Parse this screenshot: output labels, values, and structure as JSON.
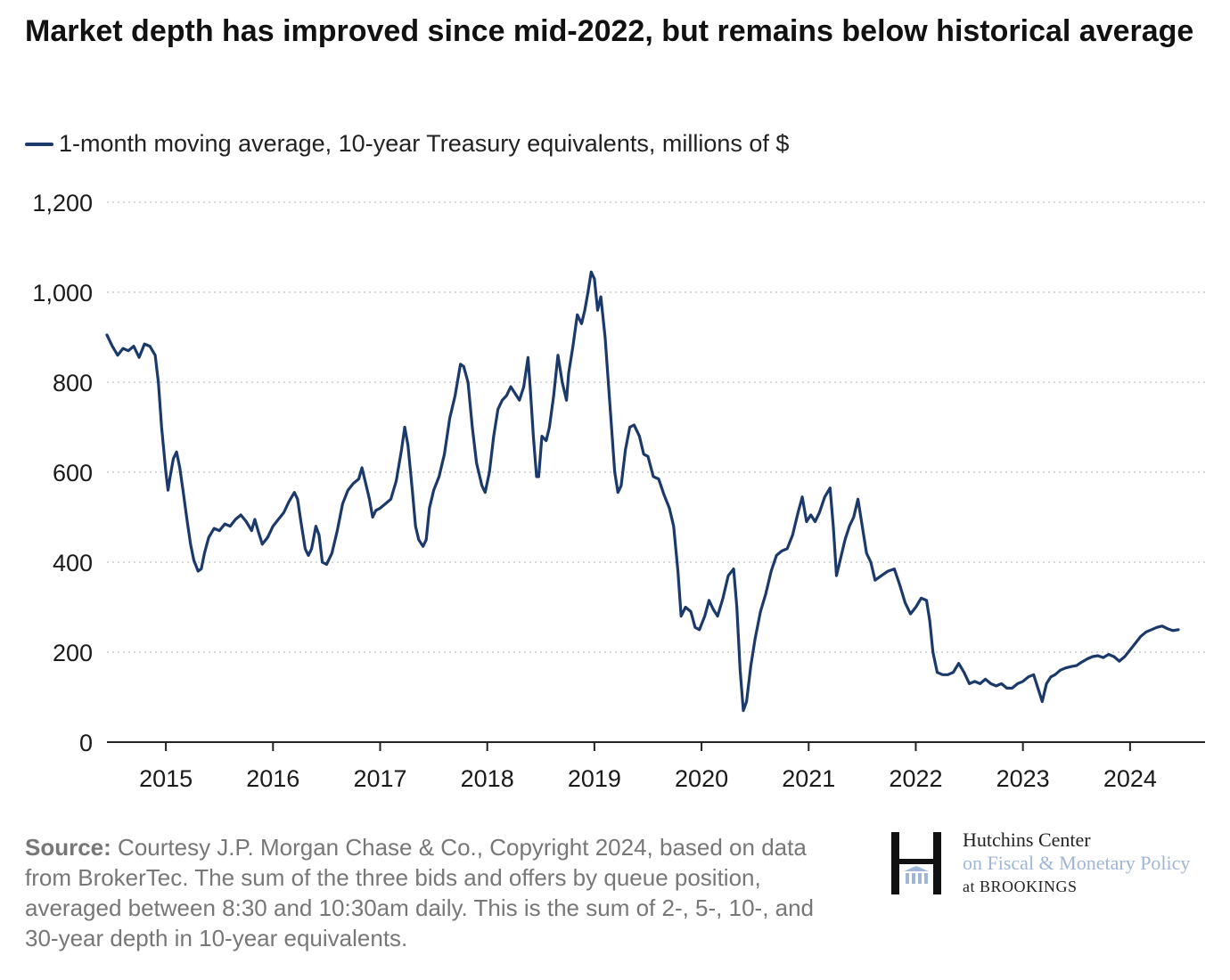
{
  "header": {
    "title": "Market depth has improved since mid-2022, but remains below historical average"
  },
  "legend": {
    "label": "1-month moving average, 10-year Treasury equivalents, millions of $"
  },
  "footer": {
    "source_label": "Source:",
    "source_text": "Courtesy J.P. Morgan Chase & Co., Copyright 2024, based on data from BrokerTec. The sum of the three bids and offers by queue position, averaged between 8:30 and 10:30am daily. This is the sum of 2-, 5-, 10-, and 30-year depth in 10-year equivalents."
  },
  "logo": {
    "line1": "Hutchins Center",
    "line2": "on Fiscal & Monetary Policy",
    "line3": "at BROOKINGS"
  },
  "colors": {
    "series": "#1b3a6b",
    "grid": "#cccccc",
    "axis": "#222222"
  },
  "chart_data": {
    "type": "line",
    "title": "Market depth has improved since mid-2022, but remains below historical average",
    "xlabel": "",
    "ylabel": "",
    "xlim": [
      2014.45,
      2024.7
    ],
    "ylim": [
      0,
      1200
    ],
    "yticks": [
      0,
      200,
      400,
      600,
      800,
      1000,
      1200
    ],
    "ytick_labels": [
      "0",
      "200",
      "400",
      "600",
      "800",
      "1,000",
      "1,200"
    ],
    "xticks": [
      2015,
      2016,
      2017,
      2018,
      2019,
      2020,
      2021,
      2022,
      2023,
      2024
    ],
    "xtick_labels": [
      "2015",
      "2016",
      "2017",
      "2018",
      "2019",
      "2020",
      "2021",
      "2022",
      "2023",
      "2024"
    ],
    "grid": "horizontal dotted",
    "legend_position": "top-left",
    "series": [
      {
        "name": "1-month moving average, 10-year Treasury equivalents, millions of $",
        "points": [
          [
            2014.45,
            905
          ],
          [
            2014.5,
            880
          ],
          [
            2014.55,
            860
          ],
          [
            2014.6,
            875
          ],
          [
            2014.65,
            870
          ],
          [
            2014.7,
            880
          ],
          [
            2014.75,
            855
          ],
          [
            2014.8,
            885
          ],
          [
            2014.85,
            880
          ],
          [
            2014.9,
            860
          ],
          [
            2014.93,
            800
          ],
          [
            2014.96,
            700
          ],
          [
            2015.0,
            600
          ],
          [
            2015.02,
            560
          ],
          [
            2015.04,
            590
          ],
          [
            2015.07,
            630
          ],
          [
            2015.1,
            645
          ],
          [
            2015.13,
            610
          ],
          [
            2015.16,
            560
          ],
          [
            2015.2,
            490
          ],
          [
            2015.23,
            440
          ],
          [
            2015.26,
            405
          ],
          [
            2015.3,
            380
          ],
          [
            2015.33,
            385
          ],
          [
            2015.36,
            420
          ],
          [
            2015.4,
            455
          ],
          [
            2015.45,
            475
          ],
          [
            2015.5,
            470
          ],
          [
            2015.55,
            485
          ],
          [
            2015.6,
            480
          ],
          [
            2015.65,
            495
          ],
          [
            2015.7,
            505
          ],
          [
            2015.75,
            490
          ],
          [
            2015.8,
            470
          ],
          [
            2015.83,
            495
          ],
          [
            2015.86,
            470
          ],
          [
            2015.9,
            440
          ],
          [
            2015.95,
            455
          ],
          [
            2016.0,
            480
          ],
          [
            2016.05,
            495
          ],
          [
            2016.1,
            510
          ],
          [
            2016.15,
            535
          ],
          [
            2016.2,
            555
          ],
          [
            2016.23,
            540
          ],
          [
            2016.26,
            490
          ],
          [
            2016.3,
            430
          ],
          [
            2016.33,
            415
          ],
          [
            2016.36,
            430
          ],
          [
            2016.4,
            480
          ],
          [
            2016.43,
            460
          ],
          [
            2016.46,
            400
          ],
          [
            2016.5,
            395
          ],
          [
            2016.55,
            420
          ],
          [
            2016.6,
            470
          ],
          [
            2016.65,
            530
          ],
          [
            2016.7,
            560
          ],
          [
            2016.75,
            575
          ],
          [
            2016.8,
            585
          ],
          [
            2016.83,
            610
          ],
          [
            2016.86,
            580
          ],
          [
            2016.9,
            540
          ],
          [
            2016.93,
            500
          ],
          [
            2016.96,
            515
          ],
          [
            2017.0,
            520
          ],
          [
            2017.05,
            530
          ],
          [
            2017.1,
            540
          ],
          [
            2017.15,
            580
          ],
          [
            2017.2,
            650
          ],
          [
            2017.23,
            700
          ],
          [
            2017.26,
            660
          ],
          [
            2017.3,
            560
          ],
          [
            2017.33,
            480
          ],
          [
            2017.36,
            450
          ],
          [
            2017.4,
            435
          ],
          [
            2017.43,
            450
          ],
          [
            2017.46,
            520
          ],
          [
            2017.5,
            560
          ],
          [
            2017.55,
            590
          ],
          [
            2017.6,
            640
          ],
          [
            2017.65,
            720
          ],
          [
            2017.7,
            770
          ],
          [
            2017.75,
            840
          ],
          [
            2017.78,
            835
          ],
          [
            2017.82,
            800
          ],
          [
            2017.86,
            700
          ],
          [
            2017.9,
            620
          ],
          [
            2017.95,
            570
          ],
          [
            2017.98,
            555
          ],
          [
            2018.02,
            600
          ],
          [
            2018.06,
            680
          ],
          [
            2018.1,
            740
          ],
          [
            2018.14,
            760
          ],
          [
            2018.18,
            770
          ],
          [
            2018.22,
            790
          ],
          [
            2018.26,
            775
          ],
          [
            2018.3,
            760
          ],
          [
            2018.34,
            790
          ],
          [
            2018.38,
            855
          ],
          [
            2018.4,
            790
          ],
          [
            2018.43,
            680
          ],
          [
            2018.46,
            590
          ],
          [
            2018.48,
            590
          ],
          [
            2018.51,
            680
          ],
          [
            2018.55,
            670
          ],
          [
            2018.58,
            700
          ],
          [
            2018.62,
            770
          ],
          [
            2018.66,
            860
          ],
          [
            2018.7,
            800
          ],
          [
            2018.74,
            760
          ],
          [
            2018.76,
            820
          ],
          [
            2018.8,
            880
          ],
          [
            2018.84,
            950
          ],
          [
            2018.88,
            930
          ],
          [
            2018.91,
            960
          ],
          [
            2018.94,
            1000
          ],
          [
            2018.97,
            1045
          ],
          [
            2019.0,
            1030
          ],
          [
            2019.03,
            960
          ],
          [
            2019.06,
            990
          ],
          [
            2019.1,
            900
          ],
          [
            2019.13,
            800
          ],
          [
            2019.16,
            700
          ],
          [
            2019.19,
            600
          ],
          [
            2019.22,
            555
          ],
          [
            2019.25,
            570
          ],
          [
            2019.29,
            650
          ],
          [
            2019.33,
            700
          ],
          [
            2019.37,
            705
          ],
          [
            2019.42,
            680
          ],
          [
            2019.46,
            640
          ],
          [
            2019.5,
            635
          ],
          [
            2019.55,
            590
          ],
          [
            2019.6,
            585
          ],
          [
            2019.65,
            550
          ],
          [
            2019.7,
            520
          ],
          [
            2019.74,
            480
          ],
          [
            2019.78,
            380
          ],
          [
            2019.81,
            280
          ],
          [
            2019.85,
            300
          ],
          [
            2019.9,
            290
          ],
          [
            2019.94,
            255
          ],
          [
            2019.98,
            250
          ],
          [
            2020.03,
            280
          ],
          [
            2020.07,
            315
          ],
          [
            2020.11,
            295
          ],
          [
            2020.15,
            280
          ],
          [
            2020.2,
            320
          ],
          [
            2020.25,
            370
          ],
          [
            2020.3,
            385
          ],
          [
            2020.33,
            300
          ],
          [
            2020.36,
            160
          ],
          [
            2020.39,
            70
          ],
          [
            2020.42,
            90
          ],
          [
            2020.46,
            170
          ],
          [
            2020.5,
            230
          ],
          [
            2020.55,
            290
          ],
          [
            2020.6,
            330
          ],
          [
            2020.65,
            380
          ],
          [
            2020.7,
            415
          ],
          [
            2020.75,
            425
          ],
          [
            2020.8,
            430
          ],
          [
            2020.85,
            460
          ],
          [
            2020.9,
            510
          ],
          [
            2020.94,
            545
          ],
          [
            2020.98,
            490
          ],
          [
            2021.02,
            505
          ],
          [
            2021.06,
            490
          ],
          [
            2021.1,
            510
          ],
          [
            2021.15,
            545
          ],
          [
            2021.2,
            565
          ],
          [
            2021.23,
            480
          ],
          [
            2021.26,
            370
          ],
          [
            2021.3,
            410
          ],
          [
            2021.34,
            450
          ],
          [
            2021.38,
            480
          ],
          [
            2021.42,
            500
          ],
          [
            2021.46,
            540
          ],
          [
            2021.5,
            480
          ],
          [
            2021.54,
            420
          ],
          [
            2021.58,
            400
          ],
          [
            2021.62,
            360
          ],
          [
            2021.68,
            370
          ],
          [
            2021.74,
            380
          ],
          [
            2021.8,
            385
          ],
          [
            2021.85,
            350
          ],
          [
            2021.9,
            310
          ],
          [
            2021.95,
            285
          ],
          [
            2022.0,
            300
          ],
          [
            2022.05,
            320
          ],
          [
            2022.1,
            315
          ],
          [
            2022.13,
            270
          ],
          [
            2022.16,
            200
          ],
          [
            2022.2,
            155
          ],
          [
            2022.25,
            150
          ],
          [
            2022.3,
            150
          ],
          [
            2022.35,
            155
          ],
          [
            2022.4,
            175
          ],
          [
            2022.45,
            155
          ],
          [
            2022.5,
            130
          ],
          [
            2022.55,
            135
          ],
          [
            2022.6,
            130
          ],
          [
            2022.65,
            140
          ],
          [
            2022.7,
            130
          ],
          [
            2022.75,
            125
          ],
          [
            2022.8,
            130
          ],
          [
            2022.85,
            120
          ],
          [
            2022.9,
            120
          ],
          [
            2022.95,
            130
          ],
          [
            2023.0,
            135
          ],
          [
            2023.05,
            145
          ],
          [
            2023.1,
            150
          ],
          [
            2023.14,
            120
          ],
          [
            2023.18,
            90
          ],
          [
            2023.22,
            130
          ],
          [
            2023.26,
            145
          ],
          [
            2023.3,
            150
          ],
          [
            2023.35,
            160
          ],
          [
            2023.4,
            165
          ],
          [
            2023.45,
            168
          ],
          [
            2023.5,
            170
          ],
          [
            2023.55,
            178
          ],
          [
            2023.6,
            185
          ],
          [
            2023.65,
            190
          ],
          [
            2023.7,
            192
          ],
          [
            2023.75,
            188
          ],
          [
            2023.8,
            195
          ],
          [
            2023.85,
            190
          ],
          [
            2023.9,
            180
          ],
          [
            2023.95,
            190
          ],
          [
            2024.0,
            205
          ],
          [
            2024.05,
            220
          ],
          [
            2024.1,
            235
          ],
          [
            2024.15,
            245
          ],
          [
            2024.2,
            250
          ],
          [
            2024.25,
            255
          ],
          [
            2024.3,
            258
          ],
          [
            2024.35,
            252
          ],
          [
            2024.4,
            248
          ],
          [
            2024.45,
            250
          ]
        ]
      }
    ]
  }
}
